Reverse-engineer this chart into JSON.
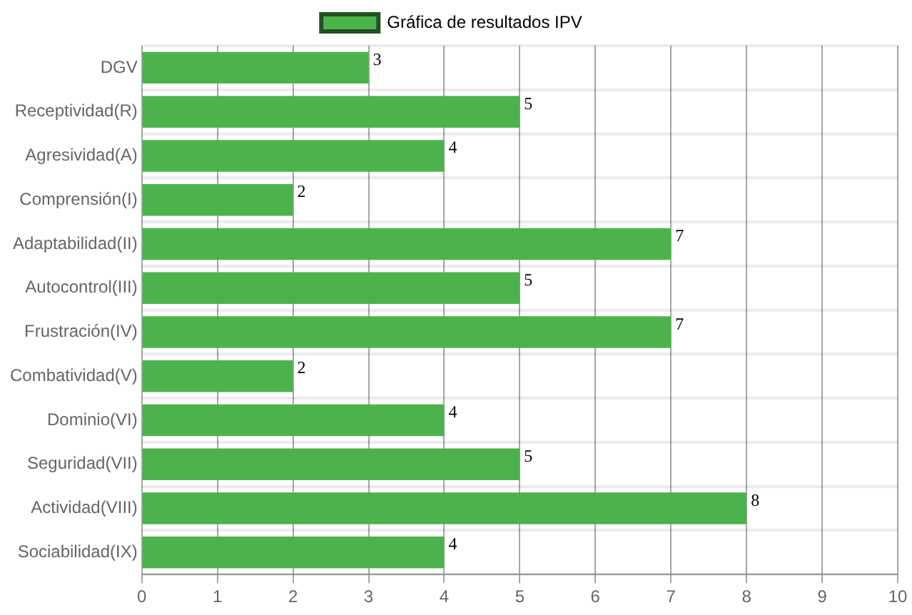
{
  "chart_data": {
    "type": "bar",
    "orientation": "horizontal",
    "categories": [
      "DGV",
      "Receptividad(R)",
      "Agresividad(A)",
      "Comprensión(I)",
      "Adaptabilidad(II)",
      "Autocontrol(III)",
      "Frustración(IV)",
      "Combatividad(V)",
      "Dominio(VI)",
      "Seguridad(VII)",
      "Actividad(VIII)",
      "Sociabilidad(IX)"
    ],
    "series": [
      {
        "name": "Gráfica de resultados IPV",
        "color": "#4cb34c",
        "values": [
          3,
          5,
          4,
          2,
          7,
          5,
          7,
          2,
          4,
          5,
          8,
          4
        ]
      }
    ],
    "xlim": [
      0,
      10
    ],
    "xticks": [
      0,
      1,
      2,
      3,
      4,
      5,
      6,
      7,
      8,
      9,
      10
    ],
    "grid": true,
    "legend": "top",
    "data_labels": true
  }
}
